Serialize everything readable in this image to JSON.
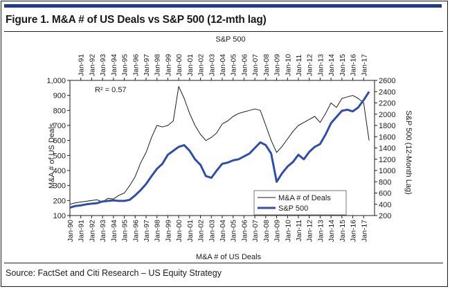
{
  "figure": {
    "title": "Figure 1. M&A # of US Deals vs S&P 500 (12-mth lag)",
    "source": "Source: FactSet and Citi Research – US Equity Strategy",
    "accent_color": "#1f3a8f"
  },
  "chart_data": {
    "type": "line",
    "top_axis_title": "S&P 500",
    "top_ticks": [
      "Jan-91",
      "Jan-92",
      "Jan-93",
      "Jan-94",
      "Jan-95",
      "Jan-96",
      "Jan-97",
      "Jan-98",
      "Jan-99",
      "Jan-00",
      "Jan-01",
      "Jan-02",
      "Jan-03",
      "Jan-04",
      "Jan-05",
      "Jan-06",
      "Jan-07",
      "Jan-08",
      "Jan-09",
      "Jan-10",
      "Jan-11",
      "Jan-12",
      "Jan-13",
      "Jan-14",
      "Jan-15",
      "Jan-16",
      "Jan-17"
    ],
    "bottom_ticks": [
      "Jan-90",
      "Jan-91",
      "Jan-92",
      "Jan-93",
      "Jan-94",
      "Jan-95",
      "Jan-96",
      "Jan-97",
      "Jan-98",
      "Jan-99",
      "Jan-00",
      "Jan-01",
      "Jan-02",
      "Jan-03",
      "Jan-04",
      "Jan-05",
      "Jan-06",
      "Jan-07",
      "Jan-08",
      "Jan-09",
      "Jan-10",
      "Jan-11",
      "Jan-12",
      "Jan-13",
      "Jan-14",
      "Jan-15",
      "Jan-16",
      "Jan-17"
    ],
    "xlabel": "M&A # of US Deals",
    "ylabel_left": "M&A # of US Deals",
    "ylabel_right": "S&P 500 (12-Month Lag)",
    "y_left": {
      "ticks": [
        "1,000",
        "900",
        "800",
        "700",
        "600",
        "500",
        "400",
        "300",
        "200",
        "100"
      ],
      "min": 100,
      "max": 1000
    },
    "y_right": {
      "ticks": [
        "2600",
        "2400",
        "2200",
        "2000",
        "1800",
        "1600",
        "1400",
        "1200",
        "1000",
        "800",
        "600",
        "400",
        "200"
      ],
      "min": 200,
      "max": 2600
    },
    "annotation": "R² = 0.57",
    "legend": {
      "position": "bottom-right",
      "entries": [
        "M&A # of Deals",
        "S&P 500"
      ]
    },
    "series": [
      {
        "name": "M&A # of Deals",
        "axis": "left",
        "color": "#1a1a1a",
        "x": [
          1990,
          1990.5,
          1991,
          1991.5,
          1992,
          1992.5,
          1993,
          1993.5,
          1994,
          1994.5,
          1995,
          1995.5,
          1996,
          1996.5,
          1997,
          1997.5,
          1998,
          1998.5,
          1999,
          1999.5,
          2000,
          2000.5,
          2001,
          2001.5,
          2002,
          2002.5,
          2003,
          2003.5,
          2004,
          2004.5,
          2005,
          2005.5,
          2006,
          2006.5,
          2007,
          2007.5,
          2008,
          2008.5,
          2009,
          2009.5,
          2010,
          2010.5,
          2011,
          2011.5,
          2012,
          2012.5,
          2013,
          2013.5,
          2014,
          2014.5,
          2015,
          2015.5,
          2016,
          2016.5,
          2017,
          2017.5
        ],
        "y": [
          175,
          185,
          190,
          195,
          200,
          205,
          190,
          215,
          210,
          235,
          250,
          300,
          360,
          450,
          520,
          620,
          700,
          690,
          700,
          730,
          960,
          880,
          780,
          700,
          640,
          600,
          620,
          650,
          710,
          730,
          760,
          780,
          790,
          800,
          810,
          800,
          700,
          600,
          520,
          560,
          610,
          660,
          700,
          720,
          740,
          760,
          720,
          780,
          850,
          820,
          880,
          890,
          900,
          880,
          850,
          600
        ]
      },
      {
        "name": "S&P 500",
        "axis": "right",
        "color": "#2f4dab",
        "x": [
          1990,
          1990.5,
          1991,
          1991.5,
          1992,
          1992.5,
          1993,
          1993.5,
          1994,
          1994.5,
          1995,
          1995.5,
          1996,
          1996.5,
          1997,
          1997.5,
          1998,
          1998.5,
          1999,
          1999.5,
          2000,
          2000.5,
          2001,
          2001.5,
          2002,
          2002.5,
          2003,
          2003.5,
          2004,
          2004.5,
          2005,
          2005.5,
          2006,
          2006.5,
          2007,
          2007.5,
          2008,
          2008.5,
          2009,
          2009.5,
          2010,
          2010.5,
          2011,
          2011.5,
          2012,
          2012.5,
          2013,
          2013.5,
          2014,
          2014.5,
          2015,
          2015.5,
          2016,
          2016.5,
          2017,
          2017.5
        ],
        "y": [
          340,
          370,
          380,
          400,
          410,
          420,
          450,
          460,
          470,
          460,
          460,
          480,
          560,
          650,
          760,
          900,
          1030,
          1120,
          1280,
          1350,
          1420,
          1450,
          1350,
          1200,
          1100,
          900,
          870,
          1000,
          1120,
          1140,
          1180,
          1200,
          1250,
          1300,
          1400,
          1500,
          1450,
          1300,
          800,
          950,
          1070,
          1150,
          1280,
          1200,
          1330,
          1420,
          1470,
          1640,
          1840,
          1950,
          2060,
          2080,
          2050,
          2120,
          2250,
          2400
        ]
      }
    ]
  }
}
